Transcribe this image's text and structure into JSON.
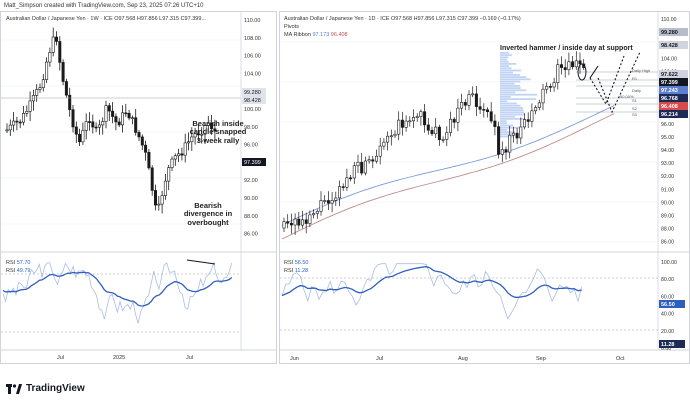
{
  "caption": "Matt_Simpson created with TradingView.com, Sep 23, 2025 07:26 UTC+10",
  "brand": "TradingView",
  "colors": {
    "candle": "#1a1a1a",
    "rsi_line": "#a9bde6",
    "rsi_ma": "#2e5fbe",
    "ma1": "#7a9cd8",
    "ma2": "#c08a8a",
    "bg": "#ffffff",
    "grid": "#eef0f4"
  },
  "left_chart": {
    "legend": "Australian Dollar / Japanese Yen · 1W · ICE  O97.568  H97.856  L97.315  C97.399...",
    "note_top": "Bearish inside\ncandle snapped\n3-week rally",
    "note_bottom": "Bearish\ndivergence in\noverbought",
    "rsi_legend": [
      {
        "label": "RSI",
        "value": "57.70"
      },
      {
        "label": "RSI",
        "value": "49.79"
      }
    ],
    "x_ticks": [
      "Jul",
      "2025",
      "Jul"
    ]
  },
  "right_chart": {
    "legend": "Australian Dollar / Japanese Yen · 1D · ICE  O97.568  H97.856  L97.315  C97.399  −0.169 (−0.17%)",
    "legend_pivots": "Pivots",
    "legend_ma": {
      "label": "MA Ribbon",
      "v1": "97.173",
      "v2": "96.408"
    },
    "note": "Inverted hammer / inside day at support",
    "pivot_labels": [
      "Daily High",
      "R1",
      "Daily",
      "S1",
      "S2",
      "S3"
    ],
    "pivot_pct": "50.00%",
    "y_ticks": [
      "110.00",
      "108.00",
      "106.00",
      "104.00",
      "102.00",
      "100.00",
      "98.00",
      "97.00",
      "96.00",
      "95.00",
      "94.00",
      "93.00",
      "92.00",
      "91.00",
      "90.00",
      "89.00",
      "88.00",
      "86.00"
    ],
    "price_tags": [
      {
        "text": "99.280",
        "color": "#b7bec9",
        "fg": "#131722"
      },
      {
        "text": "98.428",
        "color": "#d1d4dc",
        "fg": "#131722"
      },
      {
        "text": "97.622",
        "color": "#d1d4dc",
        "fg": "#131722"
      },
      {
        "text": "97.399",
        "color": "#131722",
        "fg": "#ffffff"
      },
      {
        "text": "97.243",
        "color": "#5b7fd1",
        "fg": "#ffffff"
      },
      {
        "text": "96.768",
        "color": "#1e2a56",
        "fg": "#ffffff"
      },
      {
        "text": "96.408",
        "color": "#d94b4b",
        "fg": "#ffffff"
      },
      {
        "text": "96.214",
        "color": "#1e2a56",
        "fg": "#ffffff"
      }
    ],
    "left_price_tags": [
      {
        "text": "99.280",
        "color": "#dfe3ea"
      },
      {
        "text": "98.428",
        "color": "#dfe3ea"
      },
      {
        "text": "97.399",
        "color": "#131722"
      }
    ],
    "left_y_ticks": [
      "110.00",
      "108.00",
      "106.00",
      "104.00",
      "102.00",
      "100.00",
      "98.00",
      "96.00",
      "94.00",
      "92.00",
      "90.00",
      "88.00",
      "86.00"
    ],
    "rsi_legend": [
      {
        "label": "RSI",
        "value": "56.50"
      },
      {
        "label": "RSI",
        "value": "11.28"
      }
    ],
    "rsi_y_ticks": [
      "100.00",
      "80.00",
      "60.00",
      "40.00",
      "20.00",
      "0.00"
    ],
    "rsi_tags": [
      {
        "text": "56.50",
        "color": "#2e5fbe"
      },
      {
        "text": "11.28",
        "color": "#1e2a56"
      }
    ],
    "x_ticks": [
      "Jun",
      "Jul",
      "Aug",
      "Sep",
      "Oct"
    ]
  }
}
